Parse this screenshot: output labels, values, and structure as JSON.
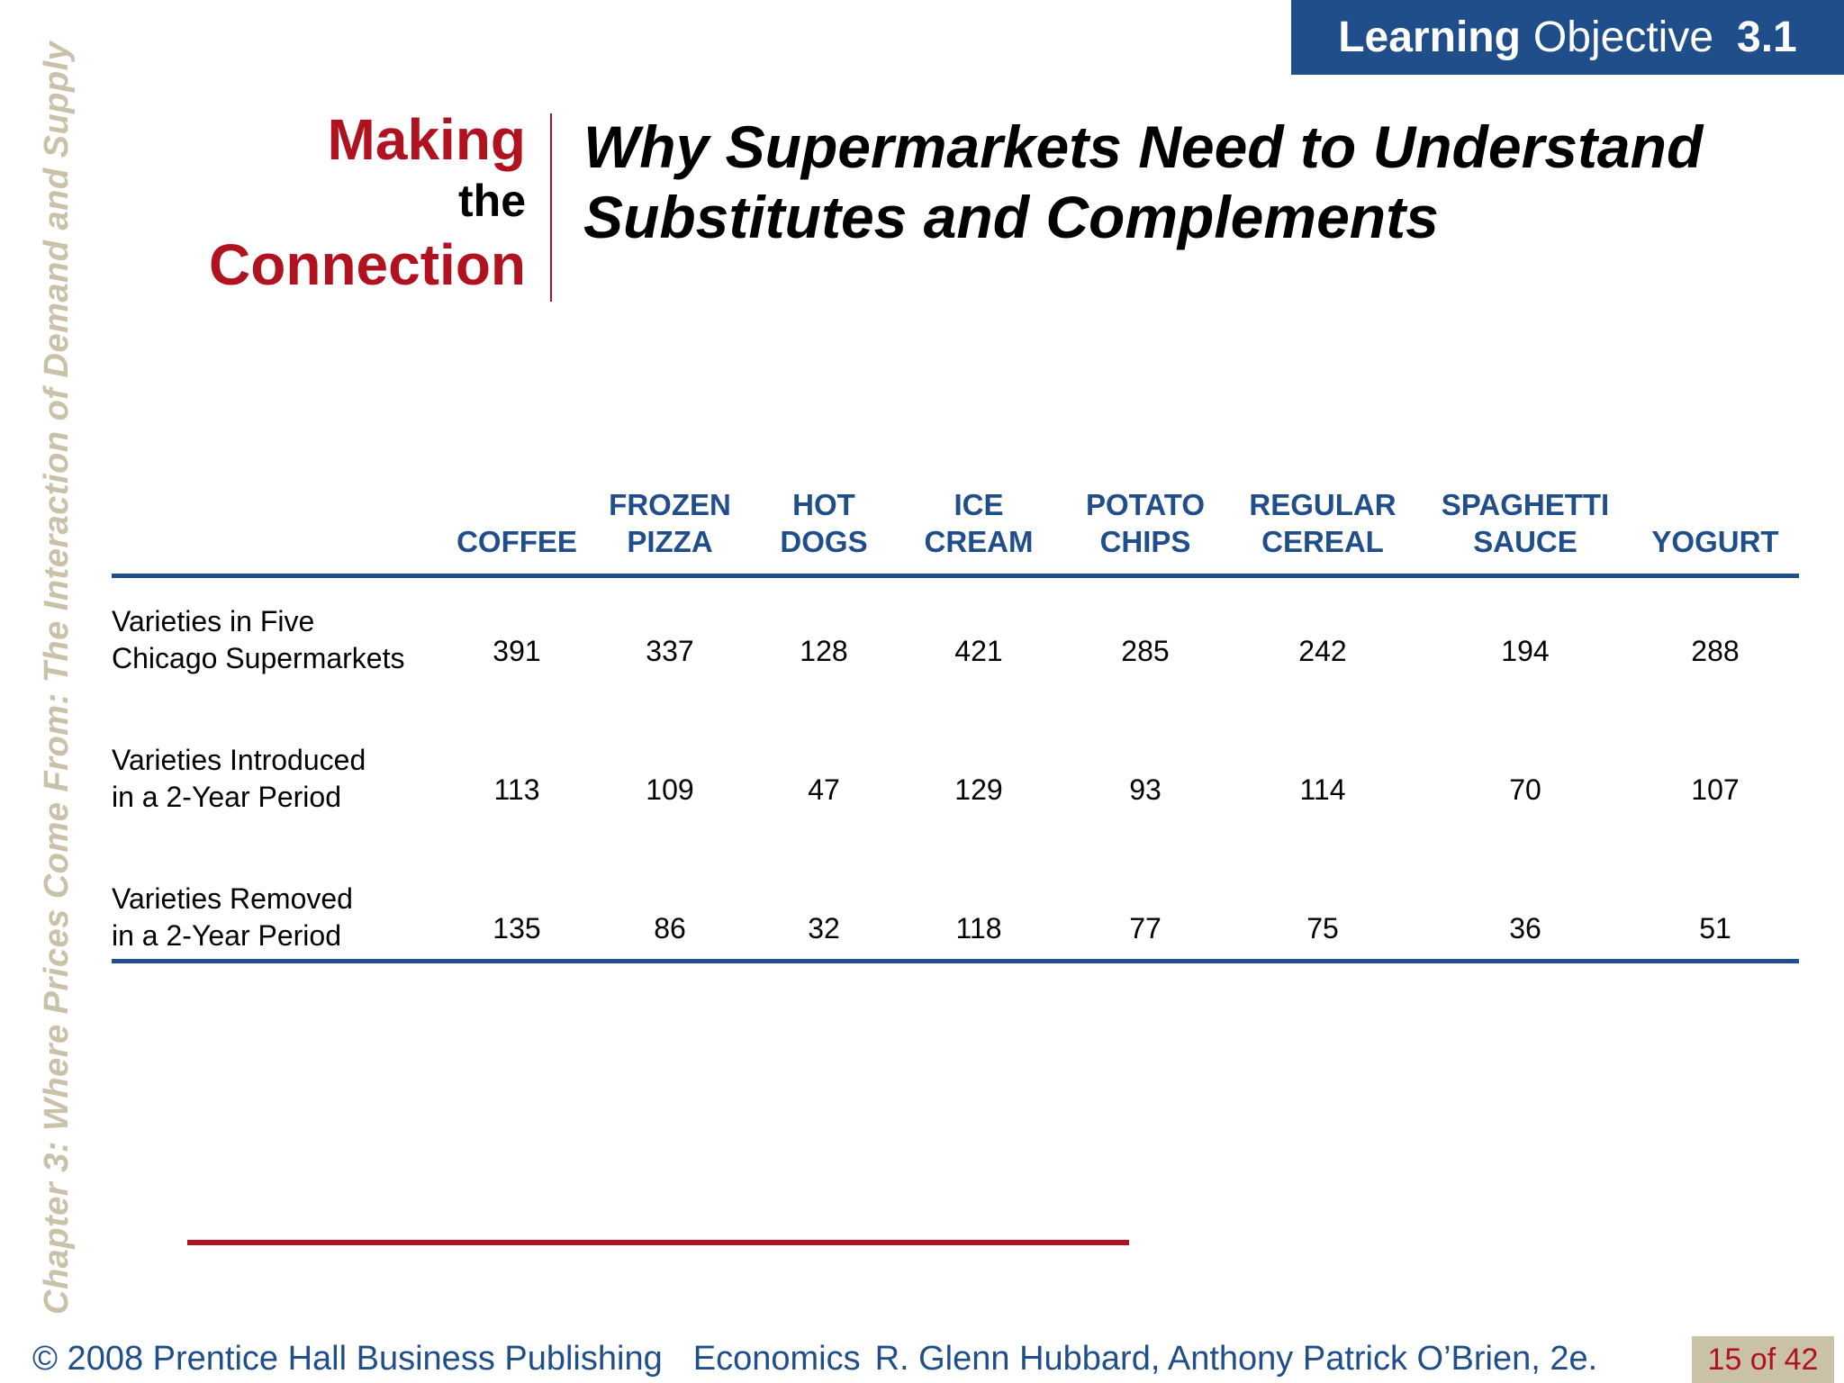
{
  "side_title": "Chapter 3: Where Prices Come From: The Interaction of Demand and Supply",
  "learning_objective": {
    "label_bold": "Learning",
    "label_regular": "Objective",
    "number": "3.1"
  },
  "feature": {
    "line1": "Making",
    "line2": "the",
    "line3": "Connection"
  },
  "headline": {
    "line1": "Why Supermarkets Need to Understand",
    "line2": "Substitutes and Complements"
  },
  "table": {
    "columns": [
      {
        "lines": [
          "COFFEE"
        ]
      },
      {
        "lines": [
          "FROZEN",
          "PIZZA"
        ]
      },
      {
        "lines": [
          "HOT",
          "DOGS"
        ]
      },
      {
        "lines": [
          "ICE",
          "CREAM"
        ]
      },
      {
        "lines": [
          "POTATO",
          "CHIPS"
        ]
      },
      {
        "lines": [
          "REGULAR",
          "CEREAL"
        ]
      },
      {
        "lines": [
          "SPAGHETTI",
          "SAUCE"
        ]
      },
      {
        "lines": [
          "YOGURT"
        ]
      }
    ],
    "rows": [
      {
        "label": [
          "Varieties in Five",
          "Chicago Supermarkets"
        ],
        "values": [
          "391",
          "337",
          "128",
          "421",
          "285",
          "242",
          "194",
          "288"
        ]
      },
      {
        "label": [
          "Varieties Introduced",
          "in a 2-Year Period"
        ],
        "values": [
          "113",
          "109",
          "47",
          "129",
          "93",
          "114",
          "70",
          "107"
        ]
      },
      {
        "label": [
          "Varieties Removed",
          "in a 2-Year Period"
        ],
        "values": [
          "135",
          "86",
          "32",
          "118",
          "77",
          "75",
          "36",
          "51"
        ]
      }
    ]
  },
  "footer": {
    "copyright": "© 2008 Prentice Hall Business Publishing",
    "book": "Economics",
    "authors": "R. Glenn Hubbard, Anthony Patrick O’Brien, 2e.",
    "page": "15 of 42"
  },
  "colors": {
    "navy": "#1f4e8a",
    "red": "#b0121f",
    "tan": "#c9c2a8"
  }
}
